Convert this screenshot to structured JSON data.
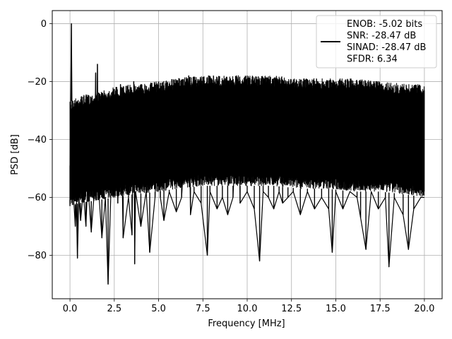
{
  "chart_data": {
    "type": "line",
    "xlabel": "Frequency [MHz]",
    "ylabel": "PSD [dB]",
    "xlim": [
      -1,
      21
    ],
    "ylim": [
      -95,
      4.5
    ],
    "x_ticks": [
      0,
      2.5,
      5,
      7.5,
      10,
      12.5,
      15,
      17.5,
      20
    ],
    "x_tick_labels": [
      "0.0",
      "2.5",
      "5.0",
      "7.5",
      "10.0",
      "12.5",
      "15.0",
      "17.5",
      "20.0"
    ],
    "y_ticks": [
      0,
      -20,
      -40,
      -60,
      -80
    ],
    "y_tick_labels": [
      "0",
      "−20",
      "−40",
      "−60",
      "−80"
    ],
    "grid": true,
    "legend_position": "top-right",
    "series": [
      {
        "color": "#000000",
        "legend_lines": [
          "ENOB: -5.02 bits",
          "SNR: -28.47 dB",
          "SINAD: -28.47 dB",
          "SFDR: 6.34"
        ],
        "points": [
          [
            0,
            -49
          ],
          [
            0.04,
            -27
          ],
          [
            0.08,
            0
          ],
          [
            0.12,
            -33
          ],
          [
            0.2,
            -60
          ],
          [
            0.3,
            -70
          ],
          [
            0.36,
            -62
          ],
          [
            0.42,
            -81
          ],
          [
            0.5,
            -60
          ],
          [
            0.6,
            -68
          ],
          [
            0.75,
            -58
          ],
          [
            0.9,
            -70
          ],
          [
            1.0,
            -55
          ],
          [
            1.2,
            -72
          ],
          [
            1.35,
            -60
          ],
          [
            1.45,
            -17
          ],
          [
            1.5,
            -57
          ],
          [
            1.55,
            -14
          ],
          [
            1.6,
            -56
          ],
          [
            1.8,
            -74
          ],
          [
            2.0,
            -60
          ],
          [
            2.15,
            -90
          ],
          [
            2.3,
            -60
          ],
          [
            2.6,
            -22
          ],
          [
            2.7,
            -62
          ],
          [
            2.85,
            -21
          ],
          [
            3.0,
            -74
          ],
          [
            3.3,
            -60
          ],
          [
            3.5,
            -73
          ],
          [
            3.6,
            -20
          ],
          [
            3.65,
            -83
          ],
          [
            3.7,
            -58
          ],
          [
            4.0,
            -70
          ],
          [
            4.3,
            -58
          ],
          [
            4.5,
            -79
          ],
          [
            4.8,
            -60
          ],
          [
            5.0,
            -21
          ],
          [
            5.1,
            -60
          ],
          [
            5.3,
            -68
          ],
          [
            5.6,
            -58
          ],
          [
            6.0,
            -65
          ],
          [
            6.3,
            -60
          ],
          [
            6.7,
            -18
          ],
          [
            6.8,
            -66
          ],
          [
            7.0,
            -58
          ],
          [
            7.4,
            -62
          ],
          [
            7.75,
            -80
          ],
          [
            7.9,
            -58
          ],
          [
            8.3,
            -64
          ],
          [
            8.6,
            -60
          ],
          [
            8.9,
            -66
          ],
          [
            9.2,
            -60
          ],
          [
            9.5,
            -18
          ],
          [
            9.6,
            -62
          ],
          [
            10.0,
            -58
          ],
          [
            10.4,
            -64
          ],
          [
            10.7,
            -82
          ],
          [
            10.9,
            -58
          ],
          [
            11.2,
            -60
          ],
          [
            11.5,
            -64
          ],
          [
            11.8,
            -58
          ],
          [
            12.0,
            -62
          ],
          [
            12.3,
            -60
          ],
          [
            12.6,
            -58
          ],
          [
            13.0,
            -66
          ],
          [
            13.4,
            -58
          ],
          [
            13.8,
            -64
          ],
          [
            14.2,
            -60
          ],
          [
            14.6,
            -64
          ],
          [
            14.8,
            -79
          ],
          [
            15.0,
            -58
          ],
          [
            15.4,
            -64
          ],
          [
            15.8,
            -58
          ],
          [
            16.2,
            -60
          ],
          [
            16.4,
            -67
          ],
          [
            16.7,
            -78
          ],
          [
            17.0,
            -58
          ],
          [
            17.4,
            -64
          ],
          [
            17.8,
            -60
          ],
          [
            18.0,
            -84
          ],
          [
            18.3,
            -60
          ],
          [
            18.8,
            -66
          ],
          [
            19.1,
            -78
          ],
          [
            19.4,
            -64
          ],
          [
            19.8,
            -60
          ],
          [
            20.0,
            -60
          ]
        ],
        "envelope_upper": [
          [
            0,
            -27
          ],
          [
            0.5,
            -25
          ],
          [
            1.5,
            -24
          ],
          [
            2.5,
            -22
          ],
          [
            3.5,
            -21
          ],
          [
            5.0,
            -20
          ],
          [
            6.0,
            -19
          ],
          [
            7.5,
            -18
          ],
          [
            9.0,
            -18
          ],
          [
            10.0,
            -18
          ],
          [
            11.5,
            -18
          ],
          [
            13.0,
            -19
          ],
          [
            14.5,
            -19
          ],
          [
            16.0,
            -19
          ],
          [
            17.5,
            -20
          ],
          [
            19.0,
            -21
          ],
          [
            20.0,
            -21
          ]
        ],
        "envelope_lower": [
          [
            0,
            -63
          ],
          [
            0.5,
            -62
          ],
          [
            1.5,
            -61
          ],
          [
            2.5,
            -60
          ],
          [
            3.5,
            -59
          ],
          [
            5.0,
            -58
          ],
          [
            6.0,
            -57
          ],
          [
            7.5,
            -56
          ],
          [
            9.0,
            -56
          ],
          [
            10.0,
            -56
          ],
          [
            11.5,
            -56
          ],
          [
            13.0,
            -57
          ],
          [
            14.5,
            -57
          ],
          [
            16.0,
            -58
          ],
          [
            17.5,
            -58
          ],
          [
            19.0,
            -59
          ],
          [
            20.0,
            -60
          ]
        ]
      }
    ]
  }
}
